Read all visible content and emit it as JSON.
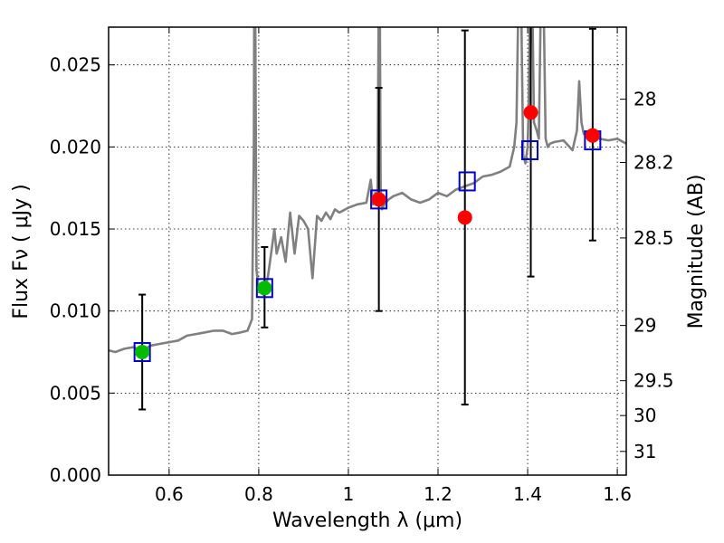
{
  "chart_data": {
    "type": "scatter",
    "xlabel": "Wavelength  λ (μm)",
    "ylabel": "Flux  Fν  ( μJy )",
    "y2label": "Magnitude (AB)",
    "xlim": [
      0.465,
      1.62
    ],
    "ylim": [
      0.0,
      0.0273
    ],
    "x_ticks": [
      0.6,
      0.8,
      1.0,
      1.2,
      1.4,
      1.6
    ],
    "x_tick_labels": [
      "0.6",
      "0.8",
      "1",
      "1.2",
      "1.4",
      "1.6"
    ],
    "y_ticks": [
      0.0,
      0.005,
      0.01,
      0.015,
      0.02,
      0.025
    ],
    "y_tick_labels": [
      "0.000",
      "0.005",
      "0.010",
      "0.015",
      "0.020",
      "0.025"
    ],
    "mag_ticks": [
      28,
      28.2,
      28.5,
      29,
      29.5,
      30,
      31
    ],
    "mag_tick_labels": [
      "28",
      "28.2",
      "28.5",
      "29",
      "29.5",
      "30",
      "31"
    ],
    "grid": true,
    "colors": {
      "spectrum": "#808080",
      "model_box": "#0000cc",
      "green_point": "#00bb00",
      "red_point": "#ff0000",
      "errorbar": "#000000"
    },
    "series": [
      {
        "name": "model spectrum",
        "kind": "line",
        "x": [
          0.465,
          0.48,
          0.5,
          0.52,
          0.54,
          0.56,
          0.58,
          0.6,
          0.62,
          0.64,
          0.66,
          0.68,
          0.7,
          0.72,
          0.74,
          0.76,
          0.775,
          0.785,
          0.789,
          0.79,
          0.792,
          0.795,
          0.8,
          0.805,
          0.81,
          0.82,
          0.83,
          0.835,
          0.84,
          0.85,
          0.86,
          0.87,
          0.88,
          0.89,
          0.9,
          0.91,
          0.92,
          0.93,
          0.94,
          0.95,
          0.96,
          0.97,
          0.98,
          1.0,
          1.02,
          1.04,
          1.05,
          1.055,
          1.06,
          1.065,
          1.068,
          1.07,
          1.072,
          1.075,
          1.08,
          1.09,
          1.1,
          1.12,
          1.14,
          1.16,
          1.18,
          1.2,
          1.22,
          1.24,
          1.26,
          1.28,
          1.3,
          1.32,
          1.34,
          1.36,
          1.37,
          1.375,
          1.38,
          1.385,
          1.39,
          1.395,
          1.4,
          1.402,
          1.406,
          1.41,
          1.414,
          1.42,
          1.425,
          1.43,
          1.435,
          1.44,
          1.445,
          1.45,
          1.46,
          1.48,
          1.5,
          1.51,
          1.515,
          1.52,
          1.525,
          1.53,
          1.54,
          1.56,
          1.58,
          1.6,
          1.62
        ],
        "y": [
          0.0076,
          0.0075,
          0.0077,
          0.0078,
          0.0076,
          0.0079,
          0.008,
          0.0081,
          0.0082,
          0.0085,
          0.0086,
          0.0087,
          0.0088,
          0.0088,
          0.0086,
          0.0087,
          0.0088,
          0.0095,
          0.02,
          0.03,
          0.03,
          0.0125,
          0.0113,
          0.0112,
          0.011,
          0.012,
          0.014,
          0.015,
          0.0135,
          0.0145,
          0.013,
          0.016,
          0.0135,
          0.0158,
          0.0155,
          0.015,
          0.012,
          0.0158,
          0.0155,
          0.016,
          0.0156,
          0.0162,
          0.016,
          0.0163,
          0.0165,
          0.0166,
          0.018,
          0.0165,
          0.0172,
          0.0168,
          0.03,
          0.03,
          0.0175,
          0.0162,
          0.0165,
          0.0168,
          0.017,
          0.0172,
          0.0168,
          0.0166,
          0.0168,
          0.0172,
          0.017,
          0.0174,
          0.0176,
          0.0178,
          0.0182,
          0.0183,
          0.0185,
          0.0188,
          0.02,
          0.0215,
          0.03,
          0.03,
          0.0195,
          0.019,
          0.02,
          0.022,
          0.03,
          0.03,
          0.0215,
          0.021,
          0.0205,
          0.03,
          0.03,
          0.0205,
          0.02,
          0.0202,
          0.0203,
          0.0204,
          0.0198,
          0.021,
          0.024,
          0.0215,
          0.0208,
          0.0207,
          0.0208,
          0.0205,
          0.0204,
          0.0205,
          0.0202
        ]
      },
      {
        "name": "model photometry",
        "kind": "box",
        "x": [
          0.54,
          0.813,
          1.068,
          1.265,
          1.405,
          1.545
        ],
        "y": [
          0.0075,
          0.0114,
          0.0168,
          0.0179,
          0.0198,
          0.0204
        ]
      },
      {
        "name": "observed (green)",
        "kind": "point",
        "x": [
          0.54,
          0.813
        ],
        "y": [
          0.0075,
          0.0114
        ],
        "yerr_low": [
          0.004,
          0.009
        ],
        "yerr_high": [
          0.011,
          0.0139
        ]
      },
      {
        "name": "observed (red)",
        "kind": "point",
        "x": [
          1.068,
          1.26,
          1.407,
          1.545
        ],
        "y": [
          0.0168,
          0.0157,
          0.0221,
          0.0207
        ],
        "yerr_low": [
          0.01,
          0.0043,
          0.0121,
          0.0143
        ],
        "yerr_high": [
          0.0236,
          0.0271,
          0.03,
          0.0272
        ]
      }
    ]
  }
}
